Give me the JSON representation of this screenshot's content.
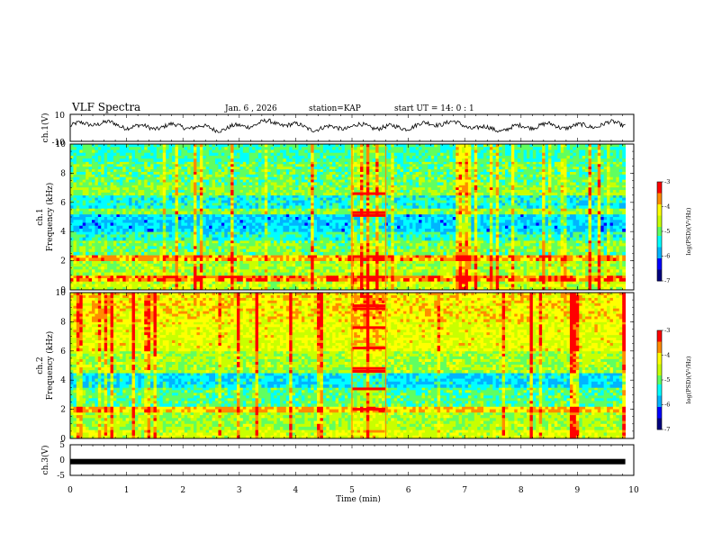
{
  "header": {
    "title": "VLF Spectra",
    "date": "Jan. 6 , 2026",
    "station": "station=KAP",
    "start_time": "start UT =  14: 0 : 1"
  },
  "chart_data": [
    {
      "type": "line",
      "name": "ch1-waveform",
      "ylabel": "ch.1(V)",
      "ylim": [
        -10,
        10
      ],
      "ytick_labels": [
        "10",
        "-10"
      ],
      "description_of_values": "noisy oscillation roughly between -4 and 6 V"
    },
    {
      "type": "heatmap",
      "name": "ch1-spectrogram",
      "ylabel": "ch.1\nFrequency (kHz)",
      "ylabel_line1": "ch.1",
      "ylabel_line2": "Frequency (kHz)",
      "ylim": [
        0,
        10
      ],
      "ytick_labels": [
        "0",
        "2",
        "4",
        "6",
        "8",
        "10"
      ],
      "bands_khz": [
        {
          "f0": 0.0,
          "f1": 0.6,
          "level": -4.5
        },
        {
          "f0": 0.6,
          "f1": 1.0,
          "level": -3.6
        },
        {
          "f0": 1.0,
          "f1": 2.0,
          "level": -4.7
        },
        {
          "f0": 2.0,
          "f1": 2.4,
          "level": -3.8
        },
        {
          "f0": 2.4,
          "f1": 3.4,
          "level": -4.9
        },
        {
          "f0": 3.4,
          "f1": 4.0,
          "level": -5.3
        },
        {
          "f0": 4.0,
          "f1": 5.2,
          "level": -5.7
        },
        {
          "f0": 5.2,
          "f1": 5.6,
          "level": -4.8
        },
        {
          "f0": 5.6,
          "f1": 6.5,
          "level": -5.4
        },
        {
          "f0": 6.5,
          "f1": 7.2,
          "level": -4.8
        },
        {
          "f0": 7.2,
          "f1": 8.8,
          "level": -5.0
        },
        {
          "f0": 8.8,
          "f1": 10.0,
          "level": -5.2
        }
      ],
      "interference_window_min": [
        5.0,
        5.6
      ],
      "interference_lines_khz": [
        5.1,
        5.3,
        6.6
      ],
      "colorbar": {
        "label": "log(PSD)(V²/Hz)",
        "ticks": [
          "-3",
          "-4",
          "-5",
          "-6",
          "-7"
        ],
        "range": [
          -7,
          -3
        ]
      }
    },
    {
      "type": "heatmap",
      "name": "ch2-spectrogram",
      "ylabel": "ch.2\nFrequency (kHz)",
      "ylabel_line1": "ch.2",
      "ylabel_line2": "Frequency (kHz)",
      "ylim": [
        0,
        10
      ],
      "ytick_labels": [
        "0",
        "2",
        "4",
        "6",
        "8",
        "10"
      ],
      "bands_khz": [
        {
          "f0": 0.0,
          "f1": 0.6,
          "level": -4.4
        },
        {
          "f0": 0.6,
          "f1": 1.8,
          "level": -4.7
        },
        {
          "f0": 1.8,
          "f1": 2.2,
          "level": -3.9
        },
        {
          "f0": 2.2,
          "f1": 3.5,
          "level": -5.1
        },
        {
          "f0": 3.5,
          "f1": 4.5,
          "level": -5.6
        },
        {
          "f0": 4.5,
          "f1": 6.0,
          "level": -4.7
        },
        {
          "f0": 6.0,
          "f1": 8.0,
          "level": -4.3
        },
        {
          "f0": 8.0,
          "f1": 10.0,
          "level": -4.1
        }
      ],
      "interference_window_min": [
        5.0,
        5.6
      ],
      "interference_lines_khz": [
        2.0,
        3.4,
        4.6,
        4.8,
        6.2,
        7.6,
        8.9,
        9.1
      ],
      "colorbar": {
        "label": "log(PSD)(V²/Hz)",
        "ticks": [
          "-3",
          "-4",
          "-5",
          "-6",
          "-7"
        ],
        "range": [
          -7,
          -3
        ]
      }
    },
    {
      "type": "line",
      "name": "ch3-level",
      "ylabel": "ch.3(V)",
      "ylim": [
        -5,
        5
      ],
      "ytick_labels": [
        "5",
        "0",
        "-5"
      ],
      "constant_value": -0.5
    }
  ],
  "x_axis": {
    "label": "Time (min)",
    "range": [
      0,
      10
    ],
    "data_end": 9.85,
    "tick_labels": [
      "0",
      "1",
      "2",
      "3",
      "4",
      "5",
      "6",
      "7",
      "8",
      "9",
      "10"
    ]
  },
  "colors": {
    "colormap": [
      "#00007f",
      "#0000ff",
      "#00b4ff",
      "#00ffff",
      "#60ff60",
      "#c8ff00",
      "#ffff00",
      "#ff8c00",
      "#ff0000",
      "#ffffff"
    ]
  }
}
